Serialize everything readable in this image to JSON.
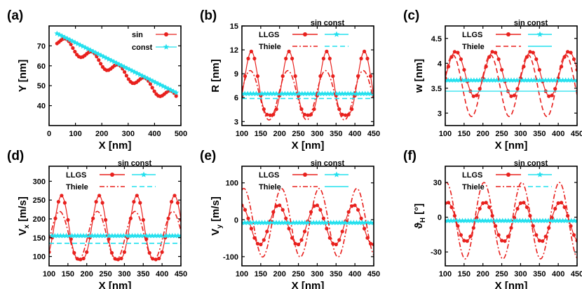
{
  "colors": {
    "red": "#e8201d",
    "cyan": "#22e0ee",
    "black": "#000000"
  },
  "chart_data": [
    {
      "panel": "(a)",
      "type": "line",
      "xlabel": "X [nm]",
      "ylabel": "Y [nm]",
      "xlim": [
        0,
        500
      ],
      "ylim": [
        30,
        80
      ],
      "xticks": [
        0,
        100,
        200,
        300,
        400,
        500
      ],
      "yticks": [
        40,
        50,
        60,
        70
      ],
      "legend_header": "",
      "series": [
        {
          "name": "sin",
          "kind": "sin-path",
          "x0": 30,
          "x1": 482,
          "y0": 75.5,
          "y1": 46,
          "amp": 5.8,
          "period": 100,
          "phase": -5,
          "cycles_marker": 1,
          "color_key": "red",
          "style": "solid",
          "marker": "circle"
        },
        {
          "name": "const",
          "kind": "linear",
          "x0": 30,
          "x1": 482,
          "y0": 76.2,
          "y1": 46.5,
          "color_key": "cyan",
          "style": "solid",
          "marker": "star"
        }
      ]
    },
    {
      "panel": "(b)",
      "type": "line",
      "xlabel": "X [nm]",
      "ylabel": "R [nm]",
      "xlim": [
        100,
        450
      ],
      "ylim": [
        2.5,
        15
      ],
      "xticks": [
        100,
        150,
        200,
        250,
        300,
        350,
        400,
        450
      ],
      "yticks": [
        3,
        6,
        9,
        12,
        15
      ],
      "legend_header": "sin   const",
      "series": [
        {
          "name": "LLGS",
          "kind": "peaked",
          "base": 3.8,
          "top": 11.8,
          "period": 100,
          "peak": 125,
          "sharp": 1.7,
          "color_key": "red",
          "style": "solid",
          "marker": "circle"
        },
        {
          "name": "LLGS-const",
          "kind": "flat",
          "value": 6.5,
          "color_key": "cyan",
          "style": "solid",
          "marker": "star"
        },
        {
          "name": "Thiele",
          "kind": "sine",
          "mean": 6.3,
          "amp": 3.1,
          "period": 100,
          "peak": 122,
          "color_key": "red",
          "style": "dashdot",
          "marker": "none"
        },
        {
          "name": "Thiele-const",
          "kind": "flat",
          "value": 5.9,
          "color_key": "cyan",
          "style": "dashed",
          "marker": "none"
        }
      ]
    },
    {
      "panel": "(c)",
      "type": "line",
      "xlabel": "X [nm]",
      "ylabel": "w [nm]",
      "xlim": [
        100,
        450
      ],
      "ylim": [
        2.75,
        4.75
      ],
      "xticks": [
        100,
        150,
        200,
        250,
        300,
        350,
        400,
        450
      ],
      "yticks": [
        3.0,
        3.5,
        4.0,
        4.5
      ],
      "legend_header": "sin   const",
      "series": [
        {
          "name": "LLGS",
          "kind": "peaked",
          "base": 3.33,
          "top": 4.24,
          "period": 100,
          "peak": 128,
          "sharp": 1.0,
          "color_key": "red",
          "style": "solid",
          "marker": "circle"
        },
        {
          "name": "LLGS-const",
          "kind": "flat",
          "value": 3.66,
          "color_key": "cyan",
          "style": "solid",
          "marker": "star"
        },
        {
          "name": "Thiele",
          "kind": "sine",
          "mean": 3.55,
          "amp": 0.62,
          "period": 100,
          "peak": 120,
          "color_key": "red",
          "style": "dashed",
          "marker": "none"
        },
        {
          "name": "Thiele-const",
          "kind": "flat",
          "value": 3.44,
          "color_key": "cyan",
          "style": "solid",
          "marker": "none"
        }
      ]
    },
    {
      "panel": "(d)",
      "type": "line",
      "xlabel": "X [nm]",
      "ylabel": "V_x [m/s]",
      "xlim": [
        100,
        450
      ],
      "ylim": [
        75,
        340
      ],
      "xticks": [
        100,
        150,
        200,
        250,
        300,
        350,
        400,
        450
      ],
      "yticks": [
        100,
        150,
        200,
        250,
        300
      ],
      "legend_header": "sin   const",
      "series": [
        {
          "name": "LLGS",
          "kind": "peaked",
          "base": 92,
          "top": 262,
          "period": 100,
          "peak": 133,
          "sharp": 1.6,
          "color_key": "red",
          "style": "solid",
          "marker": "circle"
        },
        {
          "name": "LLGS-const",
          "kind": "flat",
          "value": 155,
          "color_key": "cyan",
          "style": "solid",
          "marker": "star"
        },
        {
          "name": "Thiele",
          "kind": "sine",
          "mean": 155,
          "amp": 65,
          "period": 100,
          "peak": 128,
          "color_key": "red",
          "style": "dashdot",
          "marker": "none"
        },
        {
          "name": "Thiele-const",
          "kind": "flat",
          "value": 135,
          "color_key": "cyan",
          "style": "dashed",
          "marker": "none"
        }
      ]
    },
    {
      "panel": "(e)",
      "type": "line",
      "xlabel": "X [nm]",
      "ylabel": "V_y [m/s]",
      "xlim": [
        100,
        450
      ],
      "ylim": [
        -125,
        145
      ],
      "xticks": [
        100,
        150,
        200,
        250,
        300,
        350,
        400,
        450
      ],
      "yticks": [
        -100,
        0,
        100
      ],
      "legend_header": "sin   const",
      "series": [
        {
          "name": "LLGS",
          "kind": "sine",
          "mean": -14,
          "amp": 54,
          "period": 100,
          "peak": 197,
          "color_key": "red",
          "style": "solid",
          "marker": "circle"
        },
        {
          "name": "LLGS-const",
          "kind": "flat",
          "value": -8,
          "color_key": "cyan",
          "style": "solid",
          "marker": "star"
        },
        {
          "name": "Thiele",
          "kind": "sine",
          "mean": -8,
          "amp": 93,
          "period": 100,
          "peak": 205,
          "color_key": "red",
          "style": "dashdot",
          "marker": "none"
        },
        {
          "name": "Thiele-const",
          "kind": "flat",
          "value": -8,
          "color_key": "cyan",
          "style": "solid",
          "marker": "none"
        }
      ]
    },
    {
      "panel": "(f)",
      "type": "line",
      "xlabel": "X [nm]",
      "ylabel": "ϑ_H [°]",
      "xlim": [
        100,
        450
      ],
      "ylim": [
        -42,
        44
      ],
      "xticks": [
        100,
        150,
        200,
        250,
        300,
        350,
        400,
        450
      ],
      "yticks": [
        -30,
        0,
        30
      ],
      "legend_header": "sin   const",
      "series": [
        {
          "name": "LLGS",
          "kind": "sine",
          "mean": -4,
          "amp": 17,
          "period": 100,
          "peak": 205,
          "color_key": "red",
          "style": "solid",
          "marker": "circle"
        },
        {
          "name": "LLGS-const",
          "kind": "flat",
          "value": -3,
          "color_key": "cyan",
          "style": "solid",
          "marker": "star"
        },
        {
          "name": "Thiele",
          "kind": "sine",
          "mean": -3,
          "amp": 33,
          "period": 100,
          "peak": 203,
          "color_key": "red",
          "style": "dashdot",
          "marker": "none"
        },
        {
          "name": "Thiele-const",
          "kind": "flat",
          "value": -3,
          "color_key": "cyan",
          "style": "dashed",
          "marker": "none"
        }
      ]
    }
  ]
}
